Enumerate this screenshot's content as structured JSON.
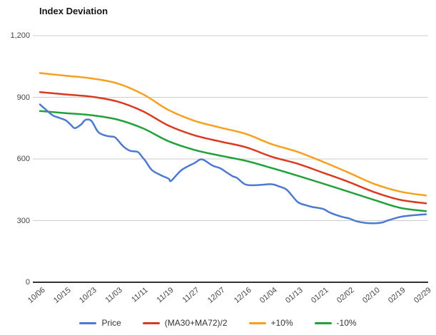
{
  "chart_data": {
    "type": "line",
    "title": "Index Deviation",
    "categories": [
      "10/06",
      "10/15",
      "10/23",
      "11/03",
      "11/11",
      "11/19",
      "11/27",
      "12/07",
      "12/16",
      "01/04",
      "01/13",
      "01/21",
      "02/02",
      "02/10",
      "02/19",
      "02/29"
    ],
    "xlabel": "",
    "ylabel": "",
    "ylim": [
      0,
      1200
    ],
    "yticks": [
      0,
      300,
      600,
      900,
      1200
    ],
    "ytick_labels": [
      "0",
      "300",
      "600",
      "900",
      "1,200"
    ],
    "grid": true,
    "legend_position": "bottom",
    "series": [
      {
        "name": "Price",
        "color": "#4d7ad1",
        "values": [
          865,
          785,
          785,
          693,
          605,
          503,
          580,
          555,
          476,
          477,
          392,
          357,
          311,
          287,
          318,
          331
        ],
        "detail": [
          [
            0,
            865
          ],
          [
            0.25,
            838
          ],
          [
            0.5,
            812
          ],
          [
            0.75,
            800
          ],
          [
            1,
            788
          ],
          [
            1.2,
            766
          ],
          [
            1.36,
            750
          ],
          [
            1.6,
            768
          ],
          [
            1.77,
            790
          ],
          [
            2,
            785
          ],
          [
            2.27,
            730
          ],
          [
            2.6,
            712
          ],
          [
            2.88,
            707
          ],
          [
            3,
            695
          ],
          [
            3.24,
            661
          ],
          [
            3.5,
            640
          ],
          [
            3.8,
            634
          ],
          [
            4,
            605
          ],
          [
            4.1,
            590
          ],
          [
            4.35,
            546
          ],
          [
            4.68,
            522
          ],
          [
            5,
            504
          ],
          [
            5.1,
            494
          ],
          [
            5.5,
            546
          ],
          [
            6,
            580
          ],
          [
            6.3,
            598
          ],
          [
            6.7,
            568
          ],
          [
            7,
            555
          ],
          [
            7.26,
            534
          ],
          [
            7.5,
            515
          ],
          [
            7.65,
            508
          ],
          [
            7.95,
            478
          ],
          [
            8.2,
            472
          ],
          [
            8.6,
            474
          ],
          [
            9,
            477
          ],
          [
            9.3,
            466
          ],
          [
            9.6,
            449
          ],
          [
            10,
            392
          ],
          [
            10.3,
            376
          ],
          [
            10.6,
            366
          ],
          [
            11,
            357
          ],
          [
            11.3,
            337
          ],
          [
            11.75,
            318
          ],
          [
            12,
            311
          ],
          [
            12.3,
            297
          ],
          [
            12.65,
            289
          ],
          [
            13,
            287
          ],
          [
            13.3,
            291
          ],
          [
            13.5,
            300
          ],
          [
            14,
            318
          ],
          [
            14.5,
            326
          ],
          [
            15,
            331
          ]
        ]
      },
      {
        "name": "(MA30+MA72)/2",
        "color": "#d93b20",
        "values": [
          925,
          914,
          903,
          880,
          832,
          762,
          715,
          685,
          657,
          611,
          577,
          533,
          488,
          438,
          401,
          384
        ]
      },
      {
        "name": "+10%",
        "color": "#f8a01e",
        "values": [
          1018,
          1005,
          992,
          968,
          915,
          838,
          786,
          753,
          722,
          672,
          635,
          586,
          533,
          478,
          441,
          422
        ]
      },
      {
        "name": "-10%",
        "color": "#22a03c",
        "values": [
          833,
          823,
          813,
          792,
          749,
          686,
          644,
          616,
          591,
          556,
          519,
          480,
          440,
          400,
          362,
          346
        ]
      }
    ],
    "grid_color": "#cccccc",
    "axis_color": "#333333"
  },
  "legend": {
    "items": [
      {
        "label": "Price",
        "color": "#4d7ad1"
      },
      {
        "label": "(MA30+MA72)/2",
        "color": "#d93b20"
      },
      {
        "label": "+10%",
        "color": "#f8a01e"
      },
      {
        "label": "-10%",
        "color": "#22a03c"
      }
    ]
  }
}
